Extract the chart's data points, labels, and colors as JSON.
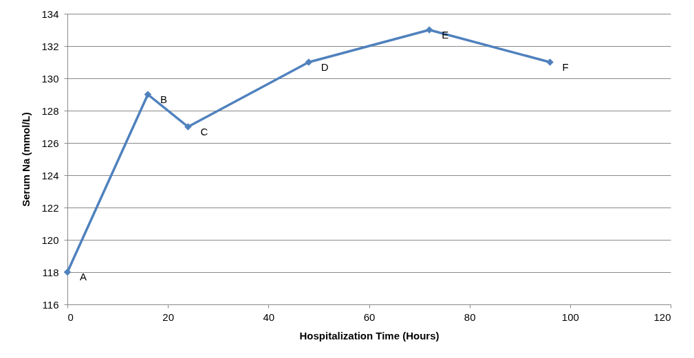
{
  "chart_data": {
    "type": "line",
    "xlabel": "Hospitalization Time (Hours)",
    "ylabel": "Serum Na (mmol/L)",
    "x": [
      0,
      16,
      24,
      48,
      72,
      96
    ],
    "series": [
      {
        "color": "#4f81bd",
        "values": [
          118,
          129,
          127,
          131,
          133,
          131
        ]
      }
    ],
    "xlim": [
      0,
      120
    ],
    "xticks": [
      0,
      20,
      40,
      60,
      80,
      100,
      120
    ],
    "ylim": [
      116,
      134
    ],
    "yticks": [
      116,
      118,
      120,
      122,
      124,
      126,
      128,
      130,
      132,
      134
    ],
    "grid": "y",
    "marker": "diamond",
    "line_style": "solid",
    "annotations": [
      {
        "text": "A",
        "x": 0,
        "y": 118
      },
      {
        "text": "B",
        "x": 16,
        "y": 129
      },
      {
        "text": "C",
        "x": 24,
        "y": 127
      },
      {
        "text": "D",
        "x": 48,
        "y": 131
      },
      {
        "text": "E",
        "x": 72,
        "y": 133
      },
      {
        "text": "F",
        "x": 96,
        "y": 131
      }
    ]
  }
}
